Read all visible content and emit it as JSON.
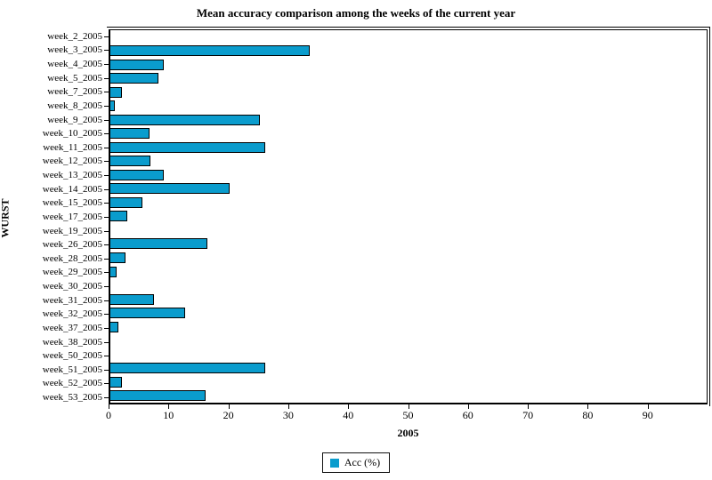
{
  "title": "Mean accuracy comparison among the weeks of the current year",
  "legend": {
    "label": "Acc (%)",
    "swatch_color": "#0a9ccd"
  },
  "x_axis": {
    "label": "2005"
  },
  "y_axis": {
    "label": "WURST"
  },
  "chart_data": {
    "type": "bar",
    "orientation": "horizontal",
    "title": "Mean accuracy comparison among the weeks of the current year",
    "xlabel": "2005",
    "ylabel": "WURST",
    "series_name": "Acc (%)",
    "bar_color": "#0a9ccd",
    "bar_border_color": "#000000",
    "xlim": [
      0,
      100
    ],
    "xticks": [
      0,
      10,
      20,
      30,
      40,
      50,
      60,
      70,
      80,
      90
    ],
    "grid": false,
    "legend_position": "bottom-center",
    "categories": [
      "week_2_2005",
      "week_3_2005",
      "week_4_2005",
      "week_5_2005",
      "week_7_2005",
      "week_8_2005",
      "week_9_2005",
      "week_10_2005",
      "week_11_2005",
      "week_12_2005",
      "week_13_2005",
      "week_14_2005",
      "week_15_2005",
      "week_17_2005",
      "week_19_2005",
      "week_26_2005",
      "week_28_2005",
      "week_29_2005",
      "week_30_2005",
      "week_31_2005",
      "week_32_2005",
      "week_37_2005",
      "week_38_2005",
      "week_50_2005",
      "week_51_2005",
      "week_52_2005",
      "week_53_2005"
    ],
    "values": [
      0,
      33.5,
      9,
      8,
      2,
      0.8,
      25,
      6.6,
      26,
      6.7,
      9,
      20,
      5.4,
      2.8,
      0,
      16.2,
      2.5,
      1,
      0,
      7.3,
      12.5,
      1.3,
      0,
      0,
      26,
      1.9,
      16
    ]
  }
}
